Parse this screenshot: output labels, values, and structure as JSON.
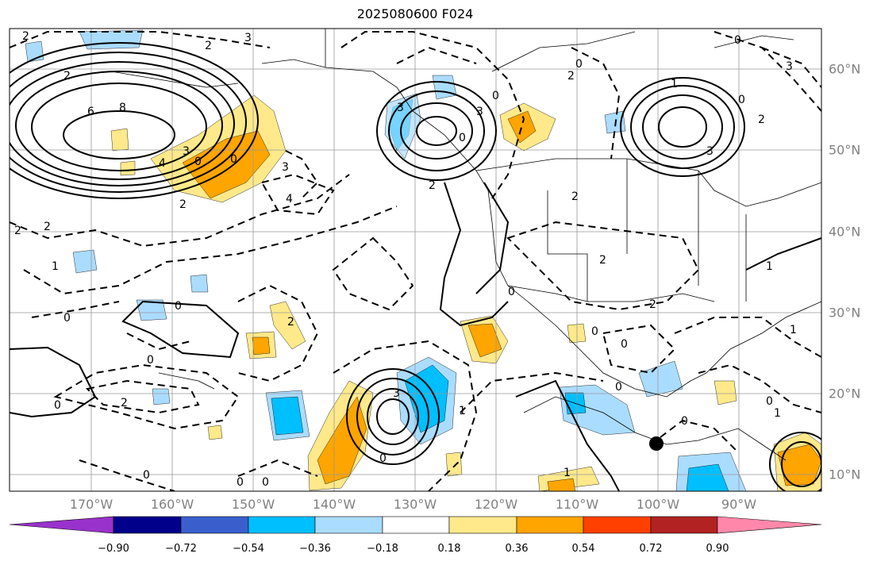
{
  "title": "2025080600 F024",
  "lon_labels": [
    "170°W",
    "160°W",
    "150°W",
    "140°W",
    "130°W",
    "120°W",
    "110°W",
    "100°W",
    "90°W"
  ],
  "lat_labels": [
    "60°N",
    "50°N",
    "40°N",
    "30°N",
    "20°N",
    "10°N"
  ],
  "colorbar": {
    "ticks": [
      "−0.90",
      "−0.72",
      "−0.54",
      "−0.36",
      "−0.18",
      "0.18",
      "0.36",
      "0.54",
      "0.72",
      "0.90"
    ],
    "colors": [
      "#9932cc",
      "#00008b",
      "#3a5fcd",
      "#00bfff",
      "#aadcff",
      "#ffffff",
      "#ffe98a",
      "#ffa500",
      "#ff4000",
      "#b22222",
      "#ff88aa"
    ]
  },
  "contour_labels": [
    "2",
    "3",
    "2",
    "2",
    "6",
    "8",
    "3",
    "4",
    "3",
    "0",
    "0",
    "2",
    "4",
    "2",
    "2",
    "3",
    "0",
    "3",
    "2",
    "2",
    "3",
    "1",
    "3",
    "0",
    "2",
    "1",
    "1",
    "2",
    "2",
    "0",
    "0",
    "0",
    "0",
    "2",
    "1",
    "0",
    "0",
    "0",
    "0",
    "3",
    "1",
    "0",
    "0",
    "2",
    "1",
    "1",
    "0",
    "0",
    "0",
    "0",
    "0",
    "2",
    "0",
    "0"
  ],
  "marker": "station-dot"
}
